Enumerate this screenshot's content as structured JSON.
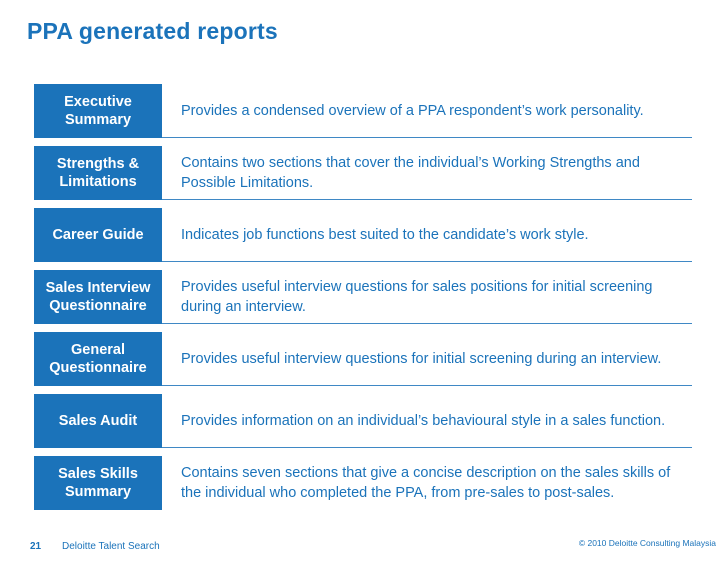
{
  "title": "PPA generated reports",
  "reports": [
    {
      "label": "Executive Summary",
      "description": "Provides a condensed overview of a PPA respondent’s work personality."
    },
    {
      "label": "Strengths & Limitations",
      "description": "Contains two sections that cover the individual’s Working Strengths and Possible Limitations."
    },
    {
      "label": "Career Guide",
      "description": "Indicates job functions best suited to the candidate’s work style."
    },
    {
      "label": "Sales Interview Questionnaire",
      "description": "Provides useful interview questions for sales positions for initial screening during an interview."
    },
    {
      "label": "General Questionnaire",
      "description": "Provides useful interview questions for initial screening during an interview."
    },
    {
      "label": "Sales Audit",
      "description": "Provides information on an individual’s behavioural style in a sales function."
    },
    {
      "label": "Sales Skills Summary",
      "description": "Contains seven sections that give a concise description on the sales skills of the individual who completed the PPA, from pre-sales to post-sales."
    }
  ],
  "footer": {
    "page_number": "21",
    "left_text": "Deloitte Talent Search",
    "right_text": "© 2010 Deloitte Consulting Malaysia"
  },
  "colors": {
    "accent": "#1b73ba",
    "divider": "#3f88c5",
    "background": "#ffffff"
  }
}
